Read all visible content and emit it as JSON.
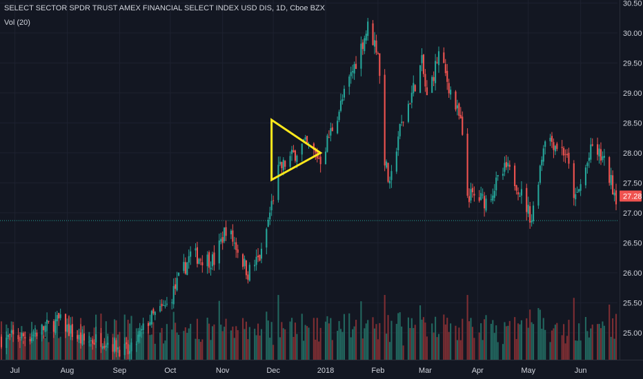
{
  "header": {
    "title": "SELECT SECTOR SPDR TRUST AMEX FINANCIAL SELECT INDEX USD DIS, 1D, Cboe BZX",
    "volume_label": "Vol (20)"
  },
  "colors": {
    "background": "#131722",
    "up": "#26a69a",
    "down": "#ef5350",
    "volume_up": "#22675f",
    "volume_down": "#7e2e33",
    "grid": "#1e2230",
    "hline": "#26a69a",
    "triangle": "#ffe81c",
    "axis_text": "#d1d4dc",
    "price_badge": "#ef5350"
  },
  "chart_data": {
    "type": "candlestick",
    "title": "SELECT SECTOR SPDR TRUST AMEX FINANCIAL SELECT INDEX USD DIS, 1D, Cboe BZX",
    "interval": "1D",
    "y_axis": {
      "side": "right",
      "ticks": [
        "25.00",
        "25.50",
        "26.00",
        "26.50",
        "27.00",
        "27.50",
        "28.00",
        "28.50",
        "29.00",
        "29.50",
        "30.00",
        "30.50"
      ],
      "range": [
        24.55,
        30.55
      ]
    },
    "x_axis": {
      "ticks": [
        {
          "label": "Jul",
          "date": "2017-07-01"
        },
        {
          "label": "Aug",
          "date": "2017-08-01"
        },
        {
          "label": "Sep",
          "date": "2017-09-01"
        },
        {
          "label": "Oct",
          "date": "2017-10-01"
        },
        {
          "label": "Nov",
          "date": "2017-11-01"
        },
        {
          "label": "Dec",
          "date": "2017-12-01"
        },
        {
          "label": "2018",
          "date": "2018-01-01"
        },
        {
          "label": "Feb",
          "date": "2018-02-01"
        },
        {
          "label": "Mar",
          "date": "2018-03-01"
        },
        {
          "label": "Apr",
          "date": "2018-04-01"
        },
        {
          "label": "May",
          "date": "2018-05-01"
        },
        {
          "label": "Jun",
          "date": "2018-06-01"
        }
      ],
      "range": [
        "2017-06-23",
        "2018-06-22"
      ]
    },
    "anchors": [
      {
        "date": "2017-06-23",
        "price": 24.9
      },
      {
        "date": "2017-07-10",
        "price": 24.95
      },
      {
        "date": "2017-07-27",
        "price": 25.2
      },
      {
        "date": "2017-08-10",
        "price": 24.85
      },
      {
        "date": "2017-08-22",
        "price": 24.9
      },
      {
        "date": "2017-09-07",
        "price": 24.65
      },
      {
        "date": "2017-09-18",
        "price": 25.2
      },
      {
        "date": "2017-09-29",
        "price": 25.45
      },
      {
        "date": "2017-10-13",
        "price": 26.3
      },
      {
        "date": "2017-10-27",
        "price": 26.2
      },
      {
        "date": "2017-11-03",
        "price": 26.75
      },
      {
        "date": "2017-11-09",
        "price": 26.45
      },
      {
        "date": "2017-11-16",
        "price": 26.0
      },
      {
        "date": "2017-11-24",
        "price": 26.3
      },
      {
        "date": "2017-11-29",
        "price": 27.0
      },
      {
        "date": "2017-12-04",
        "price": 27.7
      },
      {
        "date": "2017-12-19",
        "price": 28.15
      },
      {
        "date": "2017-12-29",
        "price": 27.9
      },
      {
        "date": "2018-01-10",
        "price": 28.8
      },
      {
        "date": "2018-01-26",
        "price": 30.1
      },
      {
        "date": "2018-02-01",
        "price": 29.7
      },
      {
        "date": "2018-02-05",
        "price": 27.9
      },
      {
        "date": "2018-02-08",
        "price": 27.4
      },
      {
        "date": "2018-02-13",
        "price": 28.3
      },
      {
        "date": "2018-02-27",
        "price": 29.5
      },
      {
        "date": "2018-03-02",
        "price": 28.9
      },
      {
        "date": "2018-03-09",
        "price": 29.65
      },
      {
        "date": "2018-03-22",
        "price": 28.5
      },
      {
        "date": "2018-03-26",
        "price": 27.3
      },
      {
        "date": "2018-04-06",
        "price": 27.2
      },
      {
        "date": "2018-04-18",
        "price": 27.75
      },
      {
        "date": "2018-04-24",
        "price": 27.5
      },
      {
        "date": "2018-05-03",
        "price": 26.9
      },
      {
        "date": "2018-05-11",
        "price": 28.3
      },
      {
        "date": "2018-05-23",
        "price": 28.0
      },
      {
        "date": "2018-05-29",
        "price": 27.2
      },
      {
        "date": "2018-06-08",
        "price": 28.1
      },
      {
        "date": "2018-06-14",
        "price": 27.9
      },
      {
        "date": "2018-06-22",
        "price": 27.28
      }
    ],
    "last_price": "27.28",
    "horizontal_line": {
      "price": 26.87,
      "style": "dotted"
    },
    "annotation": {
      "type": "triangle",
      "points": [
        {
          "date": "2017-11-30",
          "price": 28.55
        },
        {
          "date": "2017-12-29",
          "price": 28.0
        },
        {
          "date": "2017-11-30",
          "price": 27.55
        }
      ]
    },
    "volume": {
      "label": "Vol (20)",
      "max_share_of_pane": 0.18
    }
  }
}
